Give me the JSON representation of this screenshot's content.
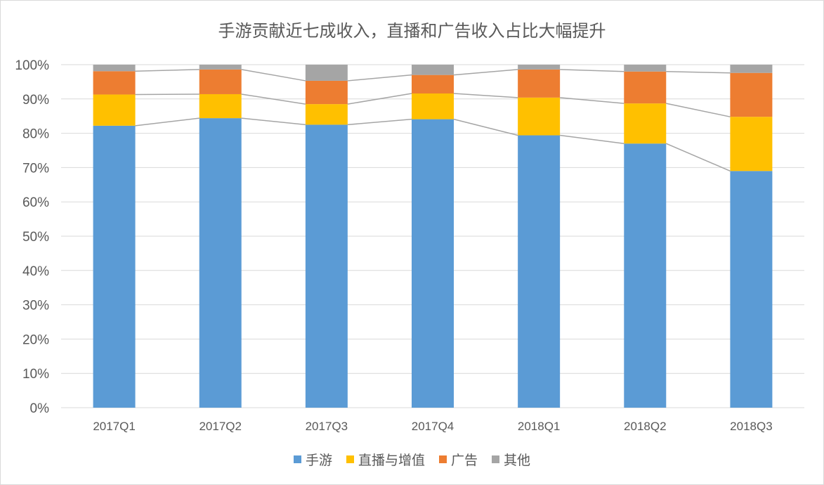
{
  "chart_data": {
    "type": "bar",
    "stacked": true,
    "title": "手游贡献近七成收入，直播和广告收入占比大幅提升",
    "categories": [
      "2017Q1",
      "2017Q2",
      "2017Q3",
      "2017Q4",
      "2018Q1",
      "2018Q2",
      "2018Q3"
    ],
    "series": [
      {
        "name": "手游",
        "color": "#5b9bd5",
        "values": [
          82.2,
          84.4,
          82.5,
          84.1,
          79.4,
          77.0,
          69.0
        ]
      },
      {
        "name": "直播与增值",
        "color": "#ffc000",
        "values": [
          9.1,
          7.0,
          6.0,
          7.5,
          11.0,
          11.7,
          15.8
        ]
      },
      {
        "name": "广告",
        "color": "#ed7d31",
        "values": [
          6.8,
          7.2,
          6.8,
          5.4,
          8.2,
          9.3,
          12.8
        ]
      },
      {
        "name": "其他",
        "color": "#a5a5a5",
        "values": [
          1.9,
          1.4,
          4.7,
          3.0,
          1.4,
          2.0,
          2.4
        ]
      }
    ],
    "ylim": [
      0,
      100
    ],
    "yticks": [
      "0%",
      "10%",
      "20%",
      "30%",
      "40%",
      "50%",
      "60%",
      "70%",
      "80%",
      "90%",
      "100%"
    ],
    "series_lines": true,
    "grid": true,
    "legend": "bottom"
  }
}
